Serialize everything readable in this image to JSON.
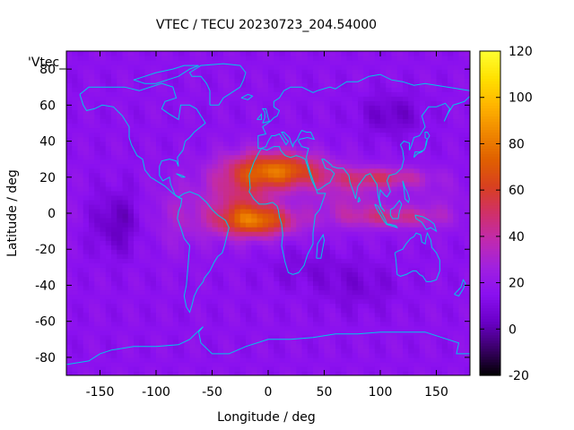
{
  "chart_data": {
    "type": "heatmap",
    "title": "VTEC / TECU 20230723_204.54000",
    "xlabel": "Longitude / deg",
    "ylabel": "Latitude / deg",
    "legend_label": "'Vtec_",
    "xlim": [
      -180,
      180
    ],
    "ylim": [
      -90,
      90
    ],
    "x_ticks": [
      -150,
      -100,
      -50,
      0,
      50,
      100,
      150
    ],
    "y_ticks": [
      -80,
      -60,
      -40,
      -20,
      0,
      20,
      40,
      60,
      80
    ],
    "colorbar": {
      "range": [
        -20,
        120
      ],
      "ticks": [
        -20,
        0,
        20,
        40,
        60,
        80,
        100,
        120
      ],
      "palette": [
        "#000000",
        "#3a0068",
        "#6a00c8",
        "#8a10f0",
        "#a020e0",
        "#c02ab0",
        "#d0306a",
        "#d84020",
        "#e06000",
        "#f08800",
        "#ffb400",
        "#ffe000",
        "#ffff30"
      ]
    },
    "field_description_lon_lat_tecu": [
      {
        "region": "background mid/high latitudes",
        "tecu": 16
      },
      {
        "region": "Africa / Atlantic equatorial crest north (lon -20..40, lat 20..28)",
        "tecu": 75
      },
      {
        "region": "Atlantic-Africa southern crest (lon -30..20, lat -2..-6)",
        "tecu": 68
      },
      {
        "region": "Indian Ocean belt (lon 50..150, lat -5..20)",
        "tecu": 45
      },
      {
        "region": "Pacific low near (lon -135, lat -5)",
        "tecu": 2
      },
      {
        "region": "Siberia low near (lon 110, lat 55)",
        "tecu": 4
      },
      {
        "region": "South Indian Ocean low near (lon 80, lat -40)",
        "tecu": 9
      }
    ],
    "overlay": "coastlines"
  }
}
